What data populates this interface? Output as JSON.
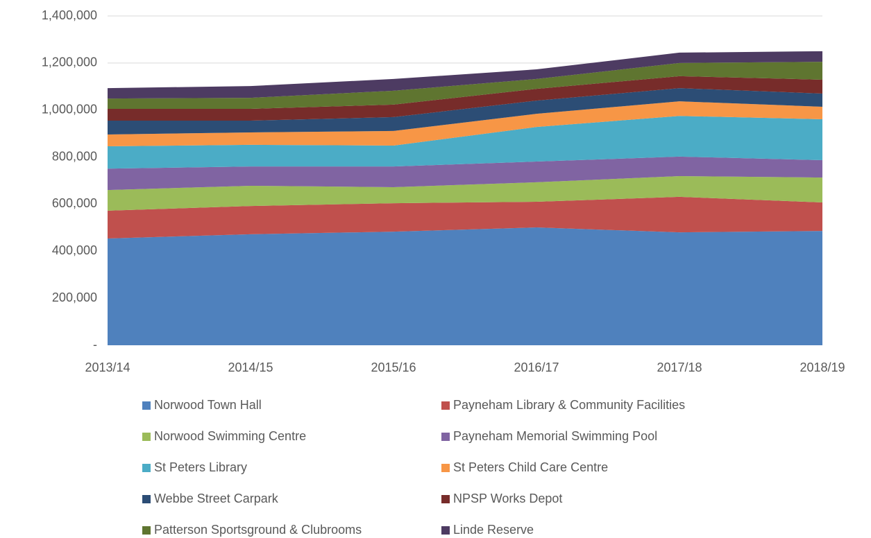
{
  "chart_data": {
    "type": "stacked_area",
    "categories": [
      "2013/14",
      "2014/15",
      "2015/16",
      "2016/17",
      "2017/18",
      "2018/19"
    ],
    "series": [
      {
        "name": "Norwood Town Hall",
        "color": "#4f81bd",
        "values": [
          454000,
          472000,
          483000,
          501000,
          480000,
          486000
        ]
      },
      {
        "name": "Payneham Library & Community Facilities",
        "color": "#c0504d",
        "values": [
          118000,
          120000,
          121000,
          109000,
          151000,
          121000
        ]
      },
      {
        "name": "Norwood Swimming Centre",
        "color": "#9bbb59",
        "values": [
          88000,
          86000,
          68000,
          83000,
          88000,
          106000
        ]
      },
      {
        "name": "Payneham Memorial Swimming Pool",
        "color": "#8064a2",
        "values": [
          91000,
          82000,
          88000,
          88000,
          83000,
          74000
        ]
      },
      {
        "name": "St Peters Library",
        "color": "#4bacc6",
        "values": [
          95000,
          92000,
          89000,
          147000,
          173000,
          174000
        ]
      },
      {
        "name": "St Peters Child Care Centre",
        "color": "#f79646",
        "values": [
          50000,
          53000,
          62000,
          56000,
          62000,
          53000
        ]
      },
      {
        "name": "Webbe Street Carpark",
        "color": "#2c4d75",
        "values": [
          59000,
          50000,
          59000,
          56000,
          56000,
          56000
        ]
      },
      {
        "name": "NPSP Works Depot",
        "color": "#772c2a",
        "values": [
          50000,
          50000,
          53000,
          50000,
          51000,
          59000
        ]
      },
      {
        "name": "Patterson Sportsground & Clubrooms",
        "color": "#5f7530",
        "values": [
          44000,
          47000,
          59000,
          42000,
          56000,
          76000
        ]
      },
      {
        "name": "Linde Reserve",
        "color": "#4d3b62",
        "values": [
          44000,
          50000,
          50000,
          41000,
          44000,
          45000
        ]
      }
    ],
    "ylim": [
      0,
      1400000
    ],
    "yticks": [
      {
        "value": 0,
        "label": "-"
      },
      {
        "value": 200000,
        "label": "200,000"
      },
      {
        "value": 400000,
        "label": "400,000"
      },
      {
        "value": 600000,
        "label": "600,000"
      },
      {
        "value": 800000,
        "label": "800,000"
      },
      {
        "value": 1000000,
        "label": "1,000,000"
      },
      {
        "value": 1200000,
        "label": "1,200,000"
      },
      {
        "value": 1400000,
        "label": "1,400,000"
      }
    ],
    "grid": true,
    "legend": "bottom"
  }
}
